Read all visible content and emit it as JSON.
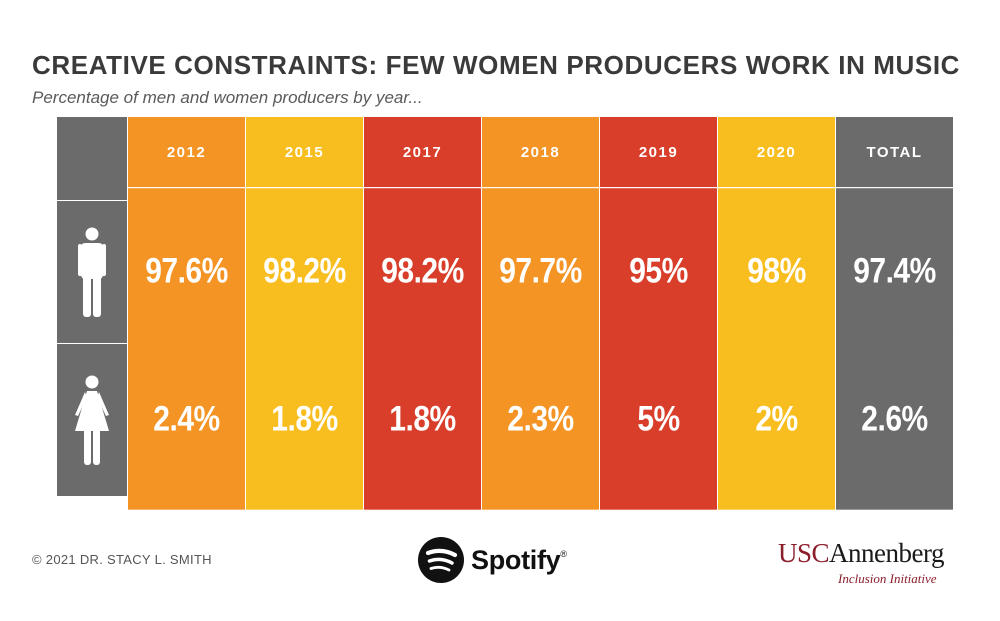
{
  "chart_data": {
    "type": "table",
    "title": "CREATIVE CONSTRAINTS: FEW WOMEN PRODUCERS WORK IN MUSIC",
    "subtitle": "Percentage of men and women producers by year...",
    "columns": [
      "2012",
      "2015",
      "2017",
      "2018",
      "2019",
      "2020",
      "TOTAL"
    ],
    "column_colors": [
      "#f39424",
      "#f8be20",
      "#d93e2a",
      "#f39424",
      "#d93e2a",
      "#f8be20",
      "#6b6b6b"
    ],
    "series": [
      {
        "name": "Men",
        "icon": "man-icon",
        "values": [
          "97.6%",
          "98.2%",
          "98.2%",
          "97.7%",
          "95%",
          "98%",
          "97.4%"
        ]
      },
      {
        "name": "Women",
        "icon": "woman-icon",
        "values": [
          "2.4%",
          "1.8%",
          "1.8%",
          "2.3%",
          "5%",
          "2%",
          "2.6%"
        ]
      }
    ],
    "unit": "percent"
  },
  "footer": {
    "copyright": "© 2021 DR. STACY L. SMITH",
    "spotify_name": "Spotify",
    "spotify_reg": "®",
    "usc_part1": "USC",
    "usc_part2": "Annenberg",
    "usc_sub": "Inclusion Initiative"
  },
  "colors": {
    "gray": "#6b6b6b",
    "title": "#3a3a3a",
    "usc_red": "#8b1e2b"
  }
}
